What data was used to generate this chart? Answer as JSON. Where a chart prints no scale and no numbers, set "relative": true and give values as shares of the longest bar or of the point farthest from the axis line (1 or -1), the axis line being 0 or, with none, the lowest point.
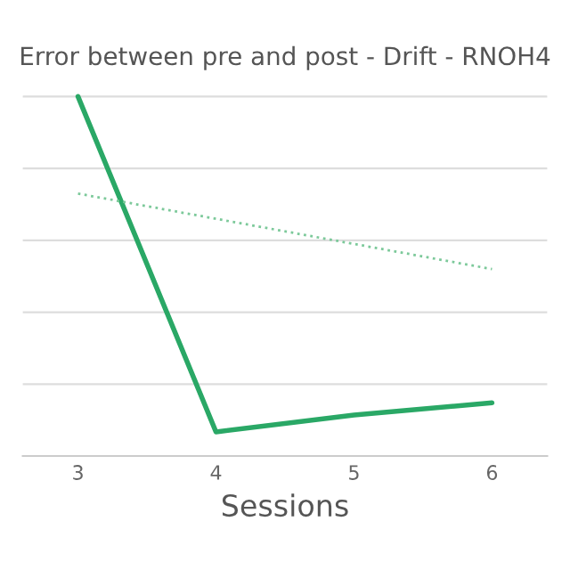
{
  "chart_data": {
    "type": "line",
    "title": "Error between pre and post - Drift - RNOH4",
    "xlabel": "Sessions",
    "categories": [
      "3",
      "4",
      "5",
      "6"
    ],
    "relative": true,
    "grid": "y",
    "legend": false,
    "marker": "none",
    "series": [
      {
        "color": "#2aa866",
        "values": [
          1,
          0.067,
          0.114,
          0.148
        ],
        "line_style": "solid"
      },
      {
        "color": "#7cc99a",
        "x": [
          "3",
          "6"
        ],
        "values": [
          0.73,
          0.52
        ],
        "line_style": "dotted"
      }
    ]
  }
}
